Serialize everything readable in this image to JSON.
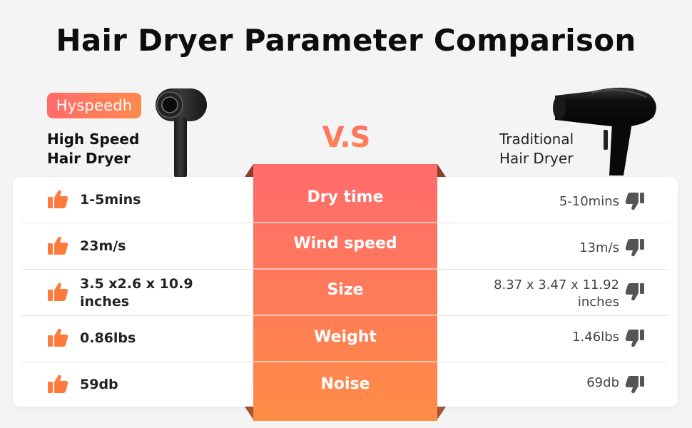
{
  "title": "Hair Dryer Parameter Comparison",
  "brand": "Hyspeedh",
  "vs": "V.S",
  "left_product": {
    "line1": "High Speed",
    "line2": "Hair Dryer"
  },
  "right_product": {
    "line1": "Traditional",
    "line2": "Hair Dryer"
  },
  "colors": {
    "accent_start": "#ff6b6b",
    "accent_end": "#ff8c45",
    "thumb_up": "#ff7a3d",
    "thumb_down": "#555555"
  },
  "rows": [
    {
      "param": "Dry time",
      "left": "1-5mins",
      "right": "5-10mins"
    },
    {
      "param": "Wind speed",
      "left": "23m/s",
      "right": "13m/s"
    },
    {
      "param": "Size",
      "left": "3.5 x2.6 x 10.9 inches",
      "right": "8.37 x 3.47 x 11.92 inches"
    },
    {
      "param": "Weight",
      "left": "0.86lbs",
      "right": "1.46lbs"
    },
    {
      "param": "Noise",
      "left": "59db",
      "right": "69db"
    }
  ]
}
